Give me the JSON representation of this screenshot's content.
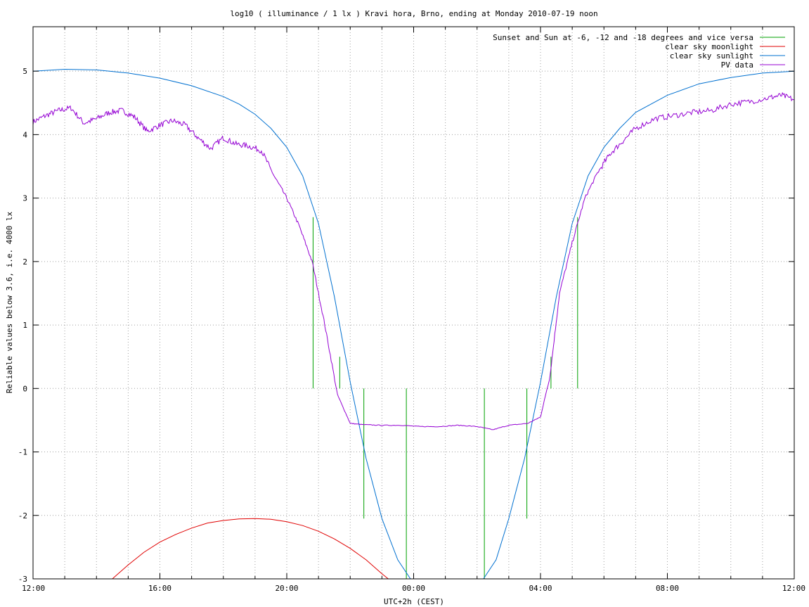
{
  "chart_data": {
    "type": "line",
    "title": "log10 ( illuminance / 1 lx ) Kravi hora, Brno, ending at Monday 2010-07-19 noon",
    "xlabel": "UTC+2h (CEST)",
    "ylabel": "Reliable values below 3.6, i.e. 4000 lx",
    "x_unit": "hours since 12:00",
    "xlim": [
      0,
      24
    ],
    "ylim": [
      -3,
      5.7
    ],
    "x_tick_values": [
      0,
      4,
      8,
      12,
      16,
      20,
      24
    ],
    "x_tick_labels": [
      "12:00",
      "16:00",
      "20:00",
      "00:00",
      "04:00",
      "08:00",
      "12:00"
    ],
    "y_ticks": [
      -3,
      -2,
      -1,
      0,
      1,
      2,
      3,
      4,
      5
    ],
    "y_tick_labels": [
      "-3",
      "-2",
      "-1",
      "0",
      "1",
      "2",
      "3",
      "4",
      "5"
    ],
    "grid": true,
    "legend_position": "top-right",
    "series": [
      {
        "name": "Sunset and Sun at -6, -12 and -18 degrees and vice versa",
        "color": "#00a000",
        "kind": "vertical-markers",
        "markers": [
          {
            "x": 8.83,
            "y_from": 0,
            "y_to": 2.7
          },
          {
            "x": 9.67,
            "y_from": 0,
            "y_to": 0.5
          },
          {
            "x": 10.43,
            "y_from": -2.05,
            "y_to": 0
          },
          {
            "x": 11.77,
            "y_from": -3.0,
            "y_to": 0
          },
          {
            "x": 14.23,
            "y_from": -3.0,
            "y_to": 0
          },
          {
            "x": 15.57,
            "y_from": -2.05,
            "y_to": 0
          },
          {
            "x": 16.33,
            "y_from": 0,
            "y_to": 0.5
          },
          {
            "x": 17.17,
            "y_from": 0,
            "y_to": 2.7
          }
        ]
      },
      {
        "name": "clear sky moonlight",
        "color": "#e00000",
        "x": [
          2.5,
          3.0,
          3.5,
          4.0,
          4.5,
          5.0,
          5.5,
          6.0,
          6.5,
          7.0,
          7.5,
          8.0,
          8.5,
          9.0,
          9.5,
          10.0,
          10.5,
          11.0,
          11.2
        ],
        "y": [
          -3.0,
          -2.78,
          -2.58,
          -2.42,
          -2.3,
          -2.2,
          -2.12,
          -2.08,
          -2.055,
          -2.05,
          -2.06,
          -2.1,
          -2.16,
          -2.25,
          -2.37,
          -2.52,
          -2.7,
          -2.92,
          -3.0
        ]
      },
      {
        "name": "clear sky sunlight",
        "color": "#0070d0",
        "x": [
          0,
          1,
          2,
          3,
          4,
          5,
          6,
          6.5,
          7,
          7.5,
          8,
          8.5,
          9,
          9.5,
          10,
          10.5,
          11,
          11.5,
          11.9,
          14.2,
          14.6,
          15,
          15.5,
          16,
          16.5,
          17,
          17.5,
          18,
          18.5,
          19,
          20,
          21,
          22,
          23,
          24
        ],
        "y": [
          5.0,
          5.03,
          5.02,
          4.97,
          4.89,
          4.77,
          4.6,
          4.48,
          4.32,
          4.1,
          3.8,
          3.35,
          2.6,
          1.45,
          0.1,
          -1.1,
          -2.05,
          -2.7,
          -3.0,
          -3.0,
          -2.7,
          -2.05,
          -1.1,
          0.1,
          1.45,
          2.6,
          3.35,
          3.8,
          4.1,
          4.35,
          4.62,
          4.8,
          4.9,
          4.97,
          5.0
        ]
      },
      {
        "name": "PV data",
        "color": "#9400d3",
        "x": [
          0,
          0.4,
          0.8,
          1.2,
          1.6,
          2.0,
          2.4,
          2.8,
          3.2,
          3.6,
          4.0,
          4.4,
          4.8,
          5.2,
          5.6,
          6.0,
          6.4,
          6.8,
          7.2,
          7.6,
          8.0,
          8.4,
          8.8,
          9.2,
          9.6,
          10.0,
          10.4,
          11.0,
          11.6,
          12.2,
          12.8,
          13.4,
          14.0,
          14.5,
          15.0,
          15.6,
          16.0,
          16.3,
          16.6,
          17.0,
          17.4,
          17.8,
          18.2,
          18.6,
          19.0,
          19.6,
          20.2,
          20.8,
          21.4,
          22.0,
          22.6,
          23.2,
          23.6,
          24.0
        ],
        "y": [
          4.2,
          4.3,
          4.38,
          4.42,
          4.18,
          4.25,
          4.35,
          4.38,
          4.28,
          4.05,
          4.15,
          4.22,
          4.15,
          3.95,
          3.78,
          3.95,
          3.85,
          3.82,
          3.75,
          3.35,
          3.0,
          2.55,
          2.0,
          1.0,
          -0.1,
          -0.55,
          -0.57,
          -0.58,
          -0.58,
          -0.6,
          -0.6,
          -0.58,
          -0.6,
          -0.65,
          -0.58,
          -0.55,
          -0.45,
          0.2,
          1.5,
          2.3,
          3.0,
          3.4,
          3.7,
          3.9,
          4.1,
          4.25,
          4.3,
          4.35,
          4.38,
          4.48,
          4.52,
          4.58,
          4.62,
          4.55
        ]
      }
    ]
  }
}
